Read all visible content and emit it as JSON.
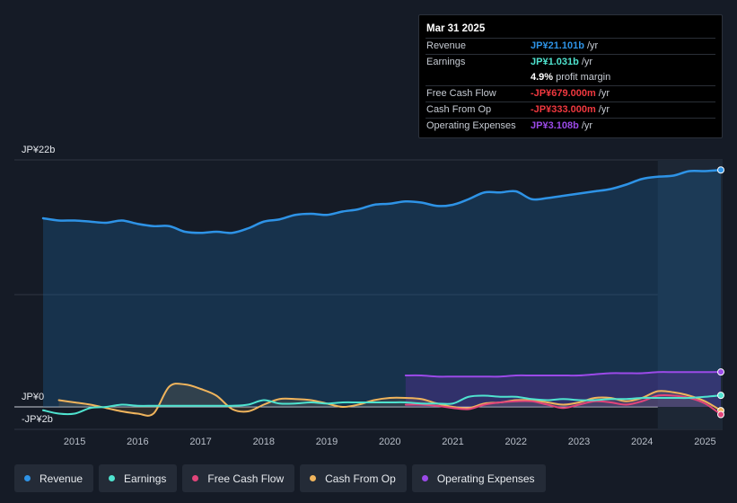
{
  "chart_data": {
    "type": "line",
    "y_top_label": "JP¥22b",
    "y_zero_label": "JP¥0",
    "y_bottom_label": "-JP¥2b",
    "ylim": [
      -2,
      22
    ],
    "xlim": [
      2014.5,
      2025.25
    ],
    "x_ticks": [
      "2015",
      "2016",
      "2017",
      "2018",
      "2019",
      "2020",
      "2021",
      "2022",
      "2023",
      "2024",
      "2025"
    ],
    "highlight_start": 2024.25,
    "series": [
      {
        "name": "Revenue",
        "color": "#2e93e6",
        "fill": true,
        "x": [
          2014.5,
          2014.75,
          2015.0,
          2015.25,
          2015.5,
          2015.75,
          2016.0,
          2016.25,
          2016.5,
          2016.75,
          2017.0,
          2017.25,
          2017.5,
          2017.75,
          2018.0,
          2018.25,
          2018.5,
          2018.75,
          2019.0,
          2019.25,
          2019.5,
          2019.75,
          2020.0,
          2020.25,
          2020.5,
          2020.75,
          2021.0,
          2021.25,
          2021.5,
          2021.75,
          2022.0,
          2022.25,
          2022.5,
          2022.75,
          2023.0,
          2023.25,
          2023.5,
          2023.75,
          2024.0,
          2024.25,
          2024.5,
          2024.75,
          2025.0,
          2025.25
        ],
        "values": [
          16.8,
          16.6,
          16.6,
          16.5,
          16.4,
          16.6,
          16.3,
          16.1,
          16.1,
          15.6,
          15.5,
          15.6,
          15.5,
          15.9,
          16.5,
          16.7,
          17.1,
          17.2,
          17.1,
          17.4,
          17.6,
          18.0,
          18.1,
          18.3,
          18.2,
          17.9,
          18.0,
          18.5,
          19.1,
          19.1,
          19.2,
          18.5,
          18.6,
          18.8,
          19.0,
          19.2,
          19.4,
          19.8,
          20.3,
          20.5,
          20.6,
          21.0,
          21.0,
          21.1
        ]
      },
      {
        "name": "Earnings",
        "color": "#4fe3cf",
        "fill": false,
        "x": [
          2014.5,
          2014.75,
          2015.0,
          2015.25,
          2015.5,
          2015.75,
          2016.0,
          2016.25,
          2016.5,
          2016.75,
          2017.0,
          2017.25,
          2017.5,
          2017.75,
          2018.0,
          2018.25,
          2018.5,
          2018.75,
          2019.0,
          2019.25,
          2019.5,
          2019.75,
          2020.0,
          2020.25,
          2020.5,
          2020.75,
          2021.0,
          2021.25,
          2021.5,
          2021.75,
          2022.0,
          2022.25,
          2022.5,
          2022.75,
          2023.0,
          2023.25,
          2023.5,
          2023.75,
          2024.0,
          2024.25,
          2024.5,
          2024.75,
          2025.0,
          2025.25
        ],
        "values": [
          -0.3,
          -0.6,
          -0.6,
          -0.1,
          0.0,
          0.2,
          0.1,
          0.1,
          0.1,
          0.1,
          0.1,
          0.1,
          0.1,
          0.2,
          0.6,
          0.3,
          0.3,
          0.4,
          0.3,
          0.4,
          0.4,
          0.4,
          0.4,
          0.4,
          0.3,
          0.3,
          0.3,
          0.9,
          1.0,
          0.9,
          0.9,
          0.7,
          0.6,
          0.7,
          0.6,
          0.6,
          0.7,
          0.7,
          0.8,
          0.8,
          0.8,
          0.8,
          0.9,
          1.03
        ]
      },
      {
        "name": "Free Cash Flow",
        "color": "#e2457a",
        "fill": false,
        "x": [
          2020.25,
          2020.5,
          2020.75,
          2021.0,
          2021.25,
          2021.5,
          2021.75,
          2022.0,
          2022.25,
          2022.5,
          2022.75,
          2023.0,
          2023.25,
          2023.5,
          2023.75,
          2024.0,
          2024.25,
          2024.5,
          2024.75,
          2025.0,
          2025.25
        ],
        "values": [
          0.2,
          0.2,
          0.1,
          -0.1,
          -0.2,
          0.2,
          0.4,
          0.5,
          0.5,
          0.2,
          -0.1,
          0.2,
          0.5,
          0.4,
          0.2,
          0.5,
          1.0,
          1.0,
          0.8,
          0.3,
          -0.68
        ]
      },
      {
        "name": "Cash From Op",
        "color": "#f0b45c",
        "fill": false,
        "x": [
          2014.75,
          2015.0,
          2015.25,
          2015.5,
          2015.75,
          2016.0,
          2016.25,
          2016.5,
          2016.75,
          2017.0,
          2017.25,
          2017.5,
          2017.75,
          2018.0,
          2018.25,
          2018.5,
          2018.75,
          2019.0,
          2019.25,
          2019.5,
          2019.75,
          2020.0,
          2020.25,
          2020.5,
          2020.75,
          2021.0,
          2021.25,
          2021.5,
          2021.75,
          2022.0,
          2022.25,
          2022.5,
          2022.75,
          2023.0,
          2023.25,
          2023.5,
          2023.75,
          2024.0,
          2024.25,
          2024.5,
          2024.75,
          2025.0,
          2025.25
        ],
        "values": [
          0.6,
          0.4,
          0.2,
          -0.1,
          -0.4,
          -0.6,
          -0.6,
          1.8,
          2.0,
          1.6,
          1.0,
          -0.2,
          -0.4,
          0.2,
          0.7,
          0.7,
          0.6,
          0.3,
          0.0,
          0.2,
          0.6,
          0.8,
          0.8,
          0.7,
          0.3,
          0.0,
          -0.1,
          0.3,
          0.4,
          0.6,
          0.6,
          0.4,
          0.2,
          0.4,
          0.8,
          0.8,
          0.5,
          0.8,
          1.4,
          1.3,
          1.0,
          0.5,
          -0.33
        ]
      },
      {
        "name": "Operating Expenses",
        "color": "#9b4ae8",
        "fill": true,
        "x": [
          2020.25,
          2020.5,
          2020.75,
          2021.0,
          2021.25,
          2021.5,
          2021.75,
          2022.0,
          2022.25,
          2022.5,
          2022.75,
          2023.0,
          2023.25,
          2023.5,
          2023.75,
          2024.0,
          2024.25,
          2024.5,
          2024.75,
          2025.0,
          2025.25
        ],
        "values": [
          2.8,
          2.8,
          2.7,
          2.7,
          2.7,
          2.7,
          2.7,
          2.8,
          2.8,
          2.8,
          2.8,
          2.8,
          2.9,
          3.0,
          3.0,
          3.0,
          3.1,
          3.1,
          3.1,
          3.1,
          3.108
        ]
      }
    ]
  },
  "tooltip": {
    "date": "Mar 31 2025",
    "rows": [
      {
        "name": "Revenue",
        "value": "JP¥21.101b",
        "unit": "/yr",
        "color": "#2e93e6"
      },
      {
        "name": "Earnings",
        "value": "JP¥1.031b",
        "unit": "/yr",
        "color": "#4fe3cf"
      },
      {
        "name": "",
        "value": "4.9%",
        "unit": "profit margin",
        "color": "#ffffff"
      },
      {
        "name": "Free Cash Flow",
        "value": "-JP¥679.000m",
        "unit": "/yr",
        "color": "#f0383f"
      },
      {
        "name": "Cash From Op",
        "value": "-JP¥333.000m",
        "unit": "/yr",
        "color": "#f0383f"
      },
      {
        "name": "Operating Expenses",
        "value": "JP¥3.108b",
        "unit": "/yr",
        "color": "#9b4ae8"
      }
    ]
  },
  "legend": [
    {
      "label": "Revenue",
      "color": "#2e93e6"
    },
    {
      "label": "Earnings",
      "color": "#4fe3cf"
    },
    {
      "label": "Free Cash Flow",
      "color": "#e2457a"
    },
    {
      "label": "Cash From Op",
      "color": "#f0b45c"
    },
    {
      "label": "Operating Expenses",
      "color": "#9b4ae8"
    }
  ]
}
